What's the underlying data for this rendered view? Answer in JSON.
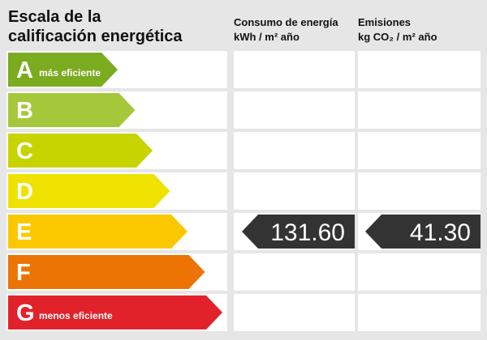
{
  "title": [
    "Escala de la",
    "calificación energética"
  ],
  "headers": {
    "consumption": [
      "Consumo de energía",
      "kWh / m² año"
    ],
    "emissions": [
      "Emisiones",
      "kg CO₂ / m² año"
    ]
  },
  "ratings": [
    {
      "letter": "A",
      "label": "más eficiente",
      "color": "#7bab1f"
    },
    {
      "letter": "B",
      "color": "#a5c83a"
    },
    {
      "letter": "C",
      "color": "#c7d400"
    },
    {
      "letter": "D",
      "color": "#f0e200"
    },
    {
      "letter": "E",
      "color": "#fbc800"
    },
    {
      "letter": "F",
      "color": "#ec7405"
    },
    {
      "letter": "G",
      "label": "menos eficiente",
      "color": "#e2222a"
    }
  ],
  "consumption": {
    "class": "E",
    "value": "131.60"
  },
  "emissions": {
    "class": "E",
    "value": "41.30"
  }
}
